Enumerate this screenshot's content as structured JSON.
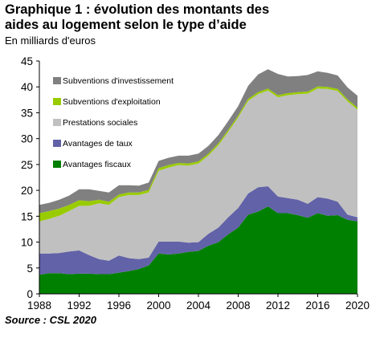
{
  "title_line1": "Graphique 1 : évolution des montants des",
  "title_line2": "aides au logement selon le type d’aide",
  "subtitle": "En milliards d'euros",
  "source": "Source : CSL 2020",
  "chart_data": {
    "type": "area",
    "stacked": true,
    "title": "Graphique 1 : évolution des montants des aides au logement selon le type d’aide",
    "ylabel": "En milliards d'euros",
    "xlabel": "",
    "ylim": [
      0,
      45
    ],
    "xlim": [
      1988,
      2020
    ],
    "y_ticks": [
      "0",
      "5",
      "10",
      "15",
      "20",
      "25",
      "30",
      "35",
      "40",
      "45"
    ],
    "x_ticks": [
      "1988",
      "1992",
      "1996",
      "2000",
      "2004",
      "2008",
      "2012",
      "2016",
      "2020"
    ],
    "grid": false,
    "legend_position": "top-left",
    "x": [
      1988,
      1989,
      1990,
      1991,
      1992,
      1993,
      1994,
      1995,
      1996,
      1997,
      1998,
      1999,
      2000,
      2001,
      2002,
      2003,
      2004,
      2005,
      2006,
      2007,
      2008,
      2009,
      2010,
      2011,
      2012,
      2013,
      2014,
      2015,
      2016,
      2017,
      2018,
      2019,
      2020
    ],
    "series": [
      {
        "name": "Avantages fiscaux",
        "color": "#008000",
        "values": [
          3.7,
          4.0,
          4.0,
          3.8,
          3.9,
          3.9,
          3.8,
          3.8,
          4.1,
          4.4,
          4.8,
          5.5,
          7.8,
          7.6,
          7.8,
          8.1,
          8.3,
          9.3,
          10.0,
          11.5,
          12.8,
          15.3,
          15.9,
          16.9,
          15.6,
          15.6,
          15.2,
          14.7,
          15.6,
          15.1,
          15.2,
          14.3,
          14.0
        ]
      },
      {
        "name": "Avantages de taux",
        "color": "#6262a8",
        "values": [
          4.1,
          3.8,
          3.9,
          4.4,
          4.5,
          3.6,
          2.9,
          2.6,
          3.3,
          2.5,
          1.9,
          1.5,
          2.3,
          2.5,
          2.3,
          1.8,
          1.7,
          2.3,
          2.8,
          3.3,
          3.8,
          4.1,
          4.7,
          3.9,
          3.2,
          2.9,
          3.0,
          2.7,
          3.1,
          3.3,
          2.6,
          1.0,
          0.8
        ]
      },
      {
        "name": "Prestations sociales",
        "color": "#c0c0c0",
        "values": [
          6.2,
          6.7,
          7.2,
          7.8,
          8.6,
          9.5,
          10.8,
          10.8,
          11.3,
          12.2,
          12.4,
          12.6,
          13.7,
          14.3,
          14.8,
          14.9,
          15.2,
          15.1,
          15.9,
          16.5,
          17.5,
          17.9,
          18.0,
          18.5,
          19.2,
          19.9,
          20.4,
          21.3,
          21.0,
          21.2,
          21.4,
          21.9,
          20.8
        ]
      },
      {
        "name": "Subventions d'exploitation",
        "color": "#99cc00",
        "values": [
          1.6,
          1.5,
          1.4,
          1.2,
          1.1,
          0.9,
          0.7,
          0.6,
          0.5,
          0.5,
          0.5,
          0.5,
          0.5,
          0.5,
          0.4,
          0.4,
          0.4,
          0.4,
          0.4,
          0.4,
          0.4,
          0.4,
          0.4,
          0.4,
          0.4,
          0.4,
          0.4,
          0.4,
          0.4,
          0.4,
          0.4,
          0.4,
          0.4
        ]
      },
      {
        "name": "Subventions d'investissement",
        "color": "#808080",
        "values": [
          1.6,
          1.6,
          1.7,
          1.8,
          2.1,
          2.3,
          1.7,
          1.8,
          1.8,
          1.4,
          1.3,
          1.4,
          1.4,
          1.4,
          1.4,
          1.5,
          1.5,
          1.5,
          1.6,
          1.7,
          1.8,
          2.5,
          3.4,
          3.7,
          4.1,
          3.2,
          3.1,
          3.2,
          2.9,
          2.7,
          2.6,
          2.3,
          2.3
        ]
      }
    ]
  }
}
